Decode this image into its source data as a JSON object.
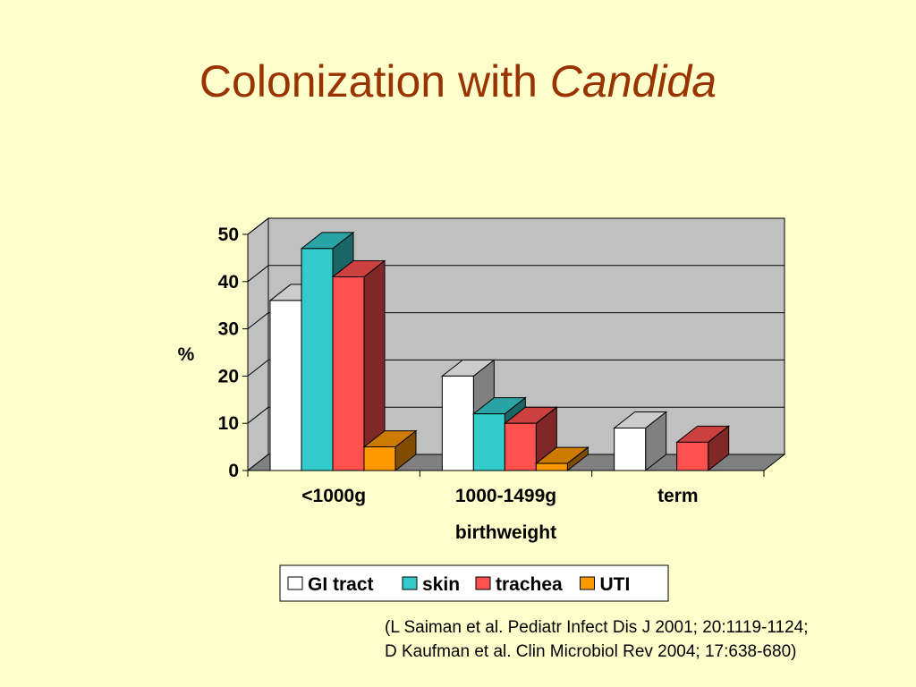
{
  "slide": {
    "title_main": "Colonization with ",
    "title_italic": "Candida"
  },
  "chart_data": {
    "type": "bar",
    "style": "3d-clustered-column",
    "categories": [
      "<1000g",
      "1000-1499g",
      "term"
    ],
    "series": [
      {
        "name": "GI tract",
        "values": [
          36,
          20,
          9
        ],
        "color": "#ffffff"
      },
      {
        "name": "skin",
        "values": [
          47,
          12,
          null
        ],
        "color": "#33cccc"
      },
      {
        "name": "trachea",
        "values": [
          41,
          10,
          6
        ],
        "color": "#ff5050"
      },
      {
        "name": "UTI",
        "values": [
          5,
          1.5,
          null
        ],
        "color": "#ff9900"
      }
    ],
    "xlabel": "birthweight",
    "ylabel": "%",
    "ylim": [
      0,
      50
    ],
    "yticks": [
      0,
      10,
      20,
      30,
      40,
      50
    ],
    "grid": true,
    "legend": "bottom",
    "wall_color": "#c0c0c0",
    "floor_color": "#808080"
  },
  "citation": {
    "line1": "(L Saiman et al. Pediatr Infect Dis J 2001; 20:1119-1124;",
    "line2": "D Kaufman et al. Clin Microbiol Rev 2004; 17:638-680)"
  }
}
